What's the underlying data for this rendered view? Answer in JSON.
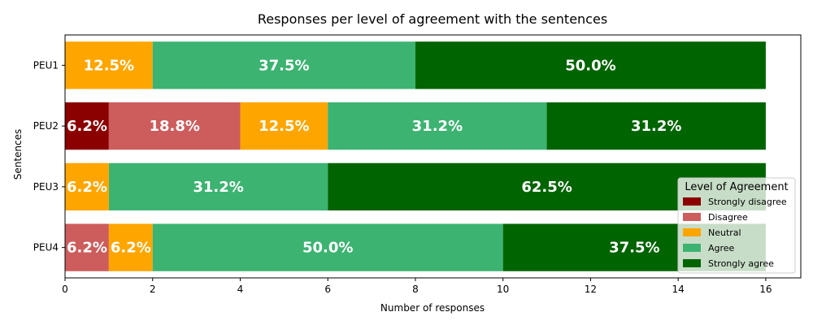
{
  "chart_data": {
    "type": "bar",
    "orientation": "horizontal",
    "stacked": true,
    "title": "Responses per level of agreement with the sentences",
    "xlabel": "Number of responses",
    "ylabel": "Sentences",
    "xlim": [
      0,
      16.8
    ],
    "xticks": [
      0,
      2,
      4,
      6,
      8,
      10,
      12,
      14,
      16
    ],
    "categories": [
      "PEU1",
      "PEU2",
      "PEU3",
      "PEU4"
    ],
    "series": [
      {
        "name": "Strongly disagree",
        "color": "#8b0000",
        "values": [
          0,
          1,
          0,
          0
        ],
        "labels": [
          "",
          "6.2%",
          "",
          ""
        ]
      },
      {
        "name": "Disagree",
        "color": "#cd5c5c",
        "values": [
          0,
          3,
          0,
          1
        ],
        "labels": [
          "",
          "18.8%",
          "",
          "6.2%"
        ]
      },
      {
        "name": "Neutral",
        "color": "#ffa500",
        "values": [
          2,
          2,
          1,
          1
        ],
        "labels": [
          "12.5%",
          "12.5%",
          "6.2%",
          "6.2%"
        ]
      },
      {
        "name": "Agree",
        "color": "#3cb371",
        "values": [
          6,
          5,
          5,
          8
        ],
        "labels": [
          "37.5%",
          "31.2%",
          "31.2%",
          "50.0%"
        ]
      },
      {
        "name": "Strongly agree",
        "color": "#006400",
        "values": [
          8,
          5,
          10,
          6
        ],
        "labels": [
          "50.0%",
          "31.2%",
          "62.5%",
          "37.5%"
        ]
      }
    ],
    "legend": {
      "title": "Level of Agreement",
      "position": "lower-right"
    },
    "grid": false
  }
}
